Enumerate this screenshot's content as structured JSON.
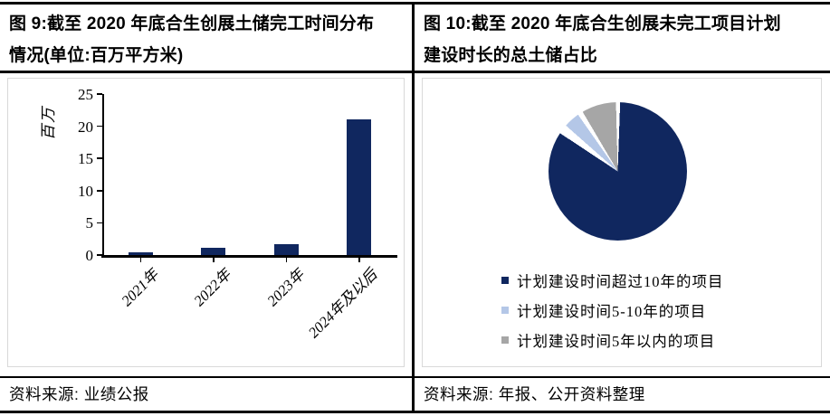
{
  "figures": {
    "left": {
      "title_line1": "图 9:截至 2020 年底合生创展土储完工时间分布",
      "title_line2": "情况(单位:百万平方米)",
      "source": "资料来源: 业绩公报"
    },
    "right": {
      "title_line1": "图 10:截至 2020 年底合生创展未完工项目计划",
      "title_line2": "建设时长的总土储占比",
      "source": "资料来源: 年报、公开资料整理"
    }
  },
  "chart_data": [
    {
      "type": "bar",
      "title": "截至2020年底合生创展土储完工时间分布情况",
      "unit": "百万平方米",
      "categories": [
        "2021年",
        "2022年",
        "2023年",
        "2024年及以后"
      ],
      "values": [
        0.4,
        1.1,
        1.7,
        21.0
      ],
      "ylabel": "百万",
      "xlabel": "",
      "ylim": [
        0,
        25
      ],
      "yticks": [
        0,
        5,
        10,
        15,
        20,
        25
      ],
      "bar_color": "#10275f",
      "grid": false,
      "x_tick_rotation_deg": -45
    },
    {
      "type": "pie",
      "title": "截至2020年底合生创展未完工项目计划建设时长的总土储占比",
      "unit": "%",
      "slices": [
        {
          "label": "计划建设时间超过10年的项目",
          "color": "#10275f",
          "value": 86
        },
        {
          "label": "计划建设时间5-10年的项目",
          "color": "#b4c7e7",
          "value": 5
        },
        {
          "label": "计划建设时间5年以内的项目",
          "color": "#a6a6a6",
          "value": 9
        }
      ],
      "segments_deg": [
        [
          2,
          303.5
        ],
        [
          311.5,
          325
        ],
        [
          329.5,
          358.5
        ]
      ],
      "gap_color": "#ffffff",
      "legend_position": "bottom",
      "legend_marker": "square"
    }
  ]
}
